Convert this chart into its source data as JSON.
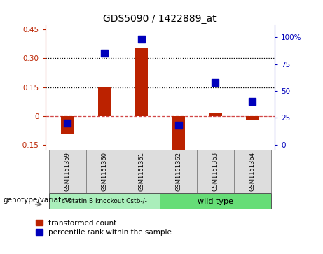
{
  "title": "GDS5090 / 1422889_at",
  "samples": [
    "GSM1151359",
    "GSM1151360",
    "GSM1151361",
    "GSM1151362",
    "GSM1151363",
    "GSM1151364"
  ],
  "transformed_count": [
    -0.095,
    0.148,
    0.355,
    -0.185,
    0.018,
    -0.018
  ],
  "percentile_rank": [
    20,
    85,
    98,
    18,
    58,
    40
  ],
  "ylim_left": [
    -0.175,
    0.47
  ],
  "ylim_right": [
    -5,
    111
  ],
  "yticks_left": [
    -0.15,
    0,
    0.15,
    0.3,
    0.45
  ],
  "yticks_right": [
    0,
    25,
    50,
    75,
    100
  ],
  "ytick_labels_left": [
    "-0.15",
    "0",
    "0.15",
    "0.30",
    "0.45"
  ],
  "ytick_labels_right": [
    "0",
    "25",
    "50",
    "75",
    "100%"
  ],
  "hlines": [
    0.15,
    0.3
  ],
  "bar_color": "#bb2200",
  "dot_color": "#0000bb",
  "zero_line_color": "#cc3333",
  "hline_color": "#000000",
  "group1_label": "cystatin B knockout Cstb-/-",
  "group2_label": "wild type",
  "group1_color": "#aaeebb",
  "group2_color": "#66dd77",
  "group1_indices": [
    0,
    1,
    2
  ],
  "group2_indices": [
    3,
    4,
    5
  ],
  "genotype_label": "genotype/variation",
  "legend_red_label": "transformed count",
  "legend_blue_label": "percentile rank within the sample",
  "plot_bg_color": "#ffffff",
  "sample_box_color": "#dddddd",
  "bar_width": 0.35,
  "dot_size": 45
}
